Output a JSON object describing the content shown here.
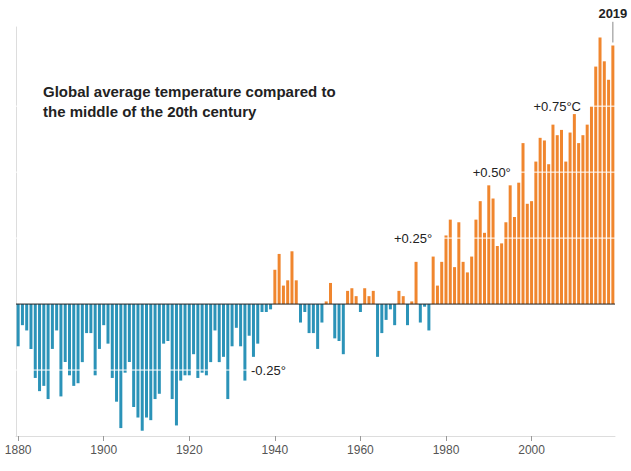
{
  "chart_data": {
    "type": "bar",
    "title": "Global average temperature compared to the middle of the 20th century",
    "x": [
      1880,
      1881,
      1882,
      1883,
      1884,
      1885,
      1886,
      1887,
      1888,
      1889,
      1890,
      1891,
      1892,
      1893,
      1894,
      1895,
      1896,
      1897,
      1898,
      1899,
      1900,
      1901,
      1902,
      1903,
      1904,
      1905,
      1906,
      1907,
      1908,
      1909,
      1910,
      1911,
      1912,
      1913,
      1914,
      1915,
      1916,
      1917,
      1918,
      1919,
      1920,
      1921,
      1922,
      1923,
      1924,
      1925,
      1926,
      1927,
      1928,
      1929,
      1930,
      1931,
      1932,
      1933,
      1934,
      1935,
      1936,
      1937,
      1938,
      1939,
      1940,
      1941,
      1942,
      1943,
      1944,
      1945,
      1946,
      1947,
      1948,
      1949,
      1950,
      1951,
      1952,
      1953,
      1954,
      1955,
      1956,
      1957,
      1958,
      1959,
      1960,
      1961,
      1962,
      1963,
      1964,
      1965,
      1966,
      1967,
      1968,
      1969,
      1970,
      1971,
      1972,
      1973,
      1974,
      1975,
      1976,
      1977,
      1978,
      1979,
      1980,
      1981,
      1982,
      1983,
      1984,
      1985,
      1986,
      1987,
      1988,
      1989,
      1990,
      1991,
      1992,
      1993,
      1994,
      1995,
      1996,
      1997,
      1998,
      1999,
      2000,
      2001,
      2002,
      2003,
      2004,
      2005,
      2006,
      2007,
      2008,
      2009,
      2010,
      2011,
      2012,
      2013,
      2014,
      2015,
      2016,
      2017,
      2018,
      2019
    ],
    "values": [
      -0.16,
      -0.08,
      -0.1,
      -0.17,
      -0.28,
      -0.33,
      -0.31,
      -0.36,
      -0.17,
      -0.1,
      -0.35,
      -0.22,
      -0.27,
      -0.31,
      -0.3,
      -0.22,
      -0.11,
      -0.11,
      -0.27,
      -0.17,
      -0.08,
      -0.15,
      -0.28,
      -0.37,
      -0.47,
      -0.26,
      -0.22,
      -0.39,
      -0.43,
      -0.48,
      -0.43,
      -0.44,
      -0.36,
      -0.34,
      -0.15,
      -0.14,
      -0.36,
      -0.46,
      -0.29,
      -0.27,
      -0.27,
      -0.19,
      -0.28,
      -0.26,
      -0.27,
      -0.22,
      -0.1,
      -0.22,
      -0.2,
      -0.36,
      -0.16,
      -0.09,
      -0.16,
      -0.29,
      -0.12,
      -0.2,
      -0.15,
      -0.03,
      -0.03,
      -0.02,
      0.13,
      0.19,
      0.07,
      0.09,
      0.2,
      0.09,
      -0.07,
      -0.03,
      -0.11,
      -0.11,
      -0.17,
      -0.07,
      0.01,
      0.08,
      -0.13,
      -0.14,
      -0.19,
      0.05,
      0.06,
      0.03,
      -0.03,
      0.06,
      0.03,
      0.05,
      -0.2,
      -0.11,
      -0.06,
      -0.02,
      -0.08,
      0.05,
      0.03,
      -0.08,
      0.01,
      0.16,
      -0.07,
      -0.01,
      -0.1,
      0.18,
      0.07,
      0.16,
      0.26,
      0.32,
      0.14,
      0.31,
      0.16,
      0.12,
      0.18,
      0.32,
      0.39,
      0.27,
      0.45,
      0.4,
      0.22,
      0.23,
      0.31,
      0.45,
      0.33,
      0.46,
      0.61,
      0.38,
      0.39,
      0.54,
      0.63,
      0.62,
      0.53,
      0.68,
      0.64,
      0.66,
      0.54,
      0.65,
      0.72,
      0.61,
      0.64,
      0.68,
      0.75,
      0.9,
      1.01,
      0.92,
      0.85,
      0.98
    ],
    "colors": [
      "#2b93b8",
      "#2b93b8",
      "#2b93b8",
      "#2b93b8",
      "#2b93b8",
      "#2b93b8",
      "#2b93b8",
      "#2b93b8",
      "#2b93b8",
      "#2b93b8",
      "#2b93b8",
      "#2b93b8",
      "#2b93b8",
      "#2b93b8",
      "#2b93b8",
      "#2b93b8",
      "#2b93b8",
      "#2b93b8",
      "#2b93b8",
      "#2b93b8",
      "#2b93b8",
      "#2b93b8",
      "#2b93b8",
      "#2b93b8",
      "#2b93b8",
      "#2b93b8",
      "#2b93b8",
      "#2b93b8",
      "#2b93b8",
      "#2b93b8",
      "#2b93b8",
      "#2b93b8",
      "#2b93b8",
      "#2b93b8",
      "#2b93b8",
      "#2b93b8",
      "#2b93b8",
      "#2b93b8",
      "#2b93b8",
      "#2b93b8",
      "#2b93b8",
      "#2b93b8",
      "#2b93b8",
      "#2b93b8",
      "#2b93b8",
      "#2b93b8",
      "#2b93b8",
      "#2b93b8",
      "#2b93b8",
      "#2b93b8",
      "#2b93b8",
      "#2b93b8",
      "#2b93b8",
      "#2b93b8",
      "#2b93b8",
      "#2b93b8",
      "#2b93b8",
      "#2b93b8",
      "#2b93b8",
      "#2b93b8",
      "#f0862e",
      "#f0862e",
      "#f0862e",
      "#f0862e",
      "#f0862e",
      "#f0862e",
      "#2b93b8",
      "#2b93b8",
      "#2b93b8",
      "#2b93b8",
      "#2b93b8",
      "#2b93b8",
      "#f0862e",
      "#f0862e",
      "#2b93b8",
      "#2b93b8",
      "#2b93b8",
      "#f0862e",
      "#f0862e",
      "#f0862e",
      "#2b93b8",
      "#f0862e",
      "#f0862e",
      "#f0862e",
      "#2b93b8",
      "#2b93b8",
      "#2b93b8",
      "#2b93b8",
      "#2b93b8",
      "#f0862e",
      "#f0862e",
      "#2b93b8",
      "#f0862e",
      "#f0862e",
      "#2b93b8",
      "#2b93b8",
      "#2b93b8",
      "#f0862e",
      "#f0862e",
      "#f0862e",
      "#f0862e",
      "#f0862e",
      "#f0862e",
      "#f0862e",
      "#f0862e",
      "#f0862e",
      "#f0862e",
      "#f0862e",
      "#f0862e",
      "#f0862e",
      "#f0862e",
      "#f0862e",
      "#f0862e",
      "#f0862e",
      "#f0862e",
      "#f0862e",
      "#f0862e",
      "#f0862e",
      "#f0862e",
      "#f0862e",
      "#f0862e",
      "#f0862e",
      "#f0862e",
      "#f0862e",
      "#f0862e",
      "#f0862e",
      "#f0862e",
      "#f0862e",
      "#f0862e",
      "#f0862e",
      "#f0862e",
      "#f0862e",
      "#f0862e",
      "#f0862e",
      "#f0862e",
      "#f0862e",
      "#f0862e",
      "#f0862e",
      "#f0862e",
      "#f0862e"
    ],
    "xlim": [
      1879.5,
      2019.5
    ],
    "xticks": [
      1880,
      1900,
      1920,
      1940,
      1960,
      1980,
      2000
    ],
    "ylim": [
      -0.5,
      1.05
    ],
    "yticks": [
      -0.25,
      0,
      0.25,
      0.5,
      0.75
    ],
    "grid": true,
    "tick_labels": "x",
    "annotations": [
      {
        "text": "-0.25°",
        "x": 1938.5,
        "y": -0.25
      },
      {
        "text": "+0.25°",
        "x": 1972.3,
        "y": 0.25
      },
      {
        "text": "+0.50°",
        "x": 1990.7,
        "y": 0.5
      },
      {
        "text": "+0.75°C",
        "x": 2006,
        "y": 0.75
      },
      {
        "text": "2019",
        "x": 2019,
        "y": 1.1
      }
    ]
  }
}
